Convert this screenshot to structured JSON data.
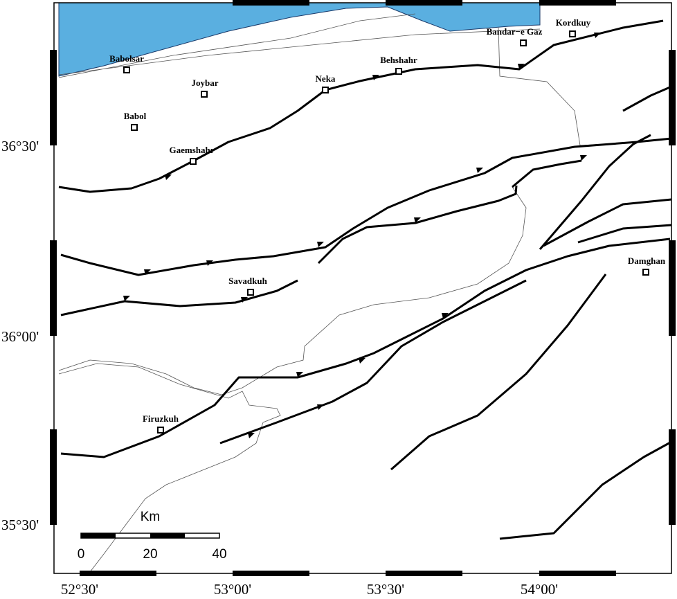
{
  "map": {
    "cities": [
      {
        "label": "Babolsar"
      },
      {
        "label": "Joybar"
      },
      {
        "label": "Babol"
      },
      {
        "label": "Gaemshahr"
      },
      {
        "label": "Neka"
      },
      {
        "label": "Behshahr"
      },
      {
        "label": "Bandar−e Gaz"
      },
      {
        "label": "Kordkuy"
      },
      {
        "label": "Savadkuh"
      },
      {
        "label": "Damghan"
      },
      {
        "label": "Firuzkuh"
      }
    ],
    "lon_labels": [
      "52°30'",
      "53°00'",
      "53°30'",
      "54°00'"
    ],
    "lat_labels": [
      "36°30'",
      "36°00'",
      "35°30'"
    ],
    "scale": {
      "unit": "Km",
      "ticks": [
        0,
        20,
        40
      ]
    }
  }
}
